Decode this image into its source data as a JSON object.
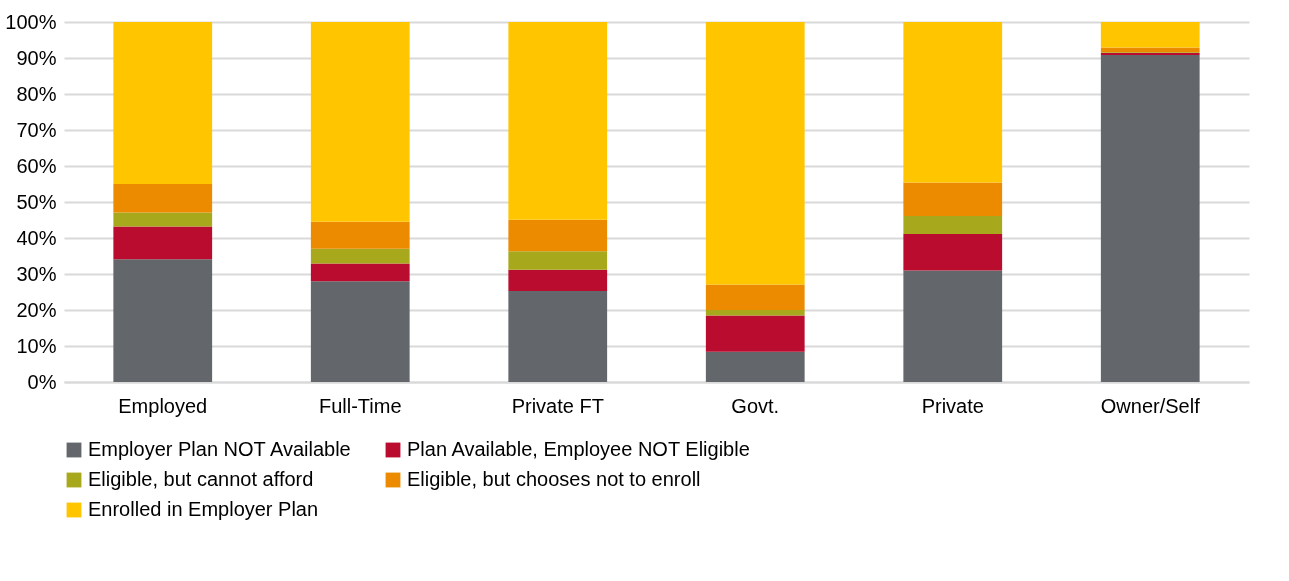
{
  "chart_data": {
    "type": "bar",
    "stacked": true,
    "categories": [
      "Employed",
      "Full-Time",
      "Private FT",
      "Govt.",
      "Private",
      "Owner/Self"
    ],
    "series": [
      {
        "name": "Employer Plan NOT Available",
        "color": "#63666a",
        "values": [
          34.1,
          28.0,
          25.3,
          8.4,
          31.0,
          90.8
        ]
      },
      {
        "name": "Plan Available, Employee NOT Eligible",
        "color": "#ba0c2f",
        "values": [
          9.1,
          4.9,
          5.9,
          10.1,
          10.1,
          0.6
        ]
      },
      {
        "name": "Eligible, but cannot afford",
        "color": "#a8a81c",
        "values": [
          3.9,
          4.1,
          5.1,
          1.5,
          5.0,
          0.2
        ]
      },
      {
        "name": "Eligible, but chooses not to enroll",
        "color": "#ec8a00",
        "values": [
          7.9,
          7.5,
          8.8,
          7.1,
          9.3,
          1.3
        ]
      },
      {
        "name": "Enrolled in Employer Plan",
        "color": "#ffc600",
        "values": [
          45.0,
          55.5,
          54.9,
          72.9,
          44.6,
          7.1
        ]
      }
    ],
    "ylim": [
      0,
      100
    ],
    "yticks": [
      {
        "value": 0,
        "label": "0%"
      },
      {
        "value": 10,
        "label": "10%"
      },
      {
        "value": 20,
        "label": "20%"
      },
      {
        "value": 30,
        "label": "30%"
      },
      {
        "value": 40,
        "label": "40%"
      },
      {
        "value": 50,
        "label": "50%"
      },
      {
        "value": 60,
        "label": "60%"
      },
      {
        "value": 70,
        "label": "70%"
      },
      {
        "value": 80,
        "label": "80%"
      },
      {
        "value": 90,
        "label": "90%"
      },
      {
        "value": 100,
        "label": "100%"
      }
    ],
    "grid": "y",
    "legend": "bottom"
  }
}
